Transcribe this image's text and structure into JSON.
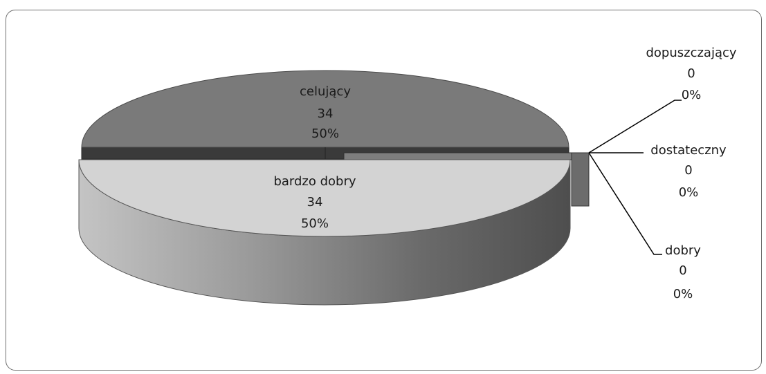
{
  "chart_data": {
    "type": "pie",
    "style": "3d-exploded",
    "slices": [
      {
        "label": "celujący",
        "value": 34,
        "percent": "50%",
        "color": "#7a7a7a"
      },
      {
        "label": "bardzo dobry",
        "value": 34,
        "percent": "50%",
        "color": "#d3d3d3"
      },
      {
        "label": "dobry",
        "value": 0,
        "percent": "0%",
        "color": "#555555"
      },
      {
        "label": "dostateczny",
        "value": 0,
        "percent": "0%",
        "color": "#6a6a6a"
      },
      {
        "label": "dopuszczający",
        "value": 0,
        "percent": "0%",
        "color": "#444444"
      }
    ],
    "legend": "none"
  },
  "labels": {
    "celujacy": {
      "name": "celujący",
      "value": "34",
      "percent": "50%"
    },
    "bardzo_dobry": {
      "name": "bardzo dobry",
      "value": "34",
      "percent": "50%"
    },
    "dopuszczajacy": {
      "name": "dopuszczający",
      "value": "0",
      "percent": "0%"
    },
    "dostateczny": {
      "name": "dostateczny",
      "value": "0",
      "percent": "0%"
    },
    "dobry": {
      "name": "dobry",
      "value": "0",
      "percent": "0%"
    }
  }
}
